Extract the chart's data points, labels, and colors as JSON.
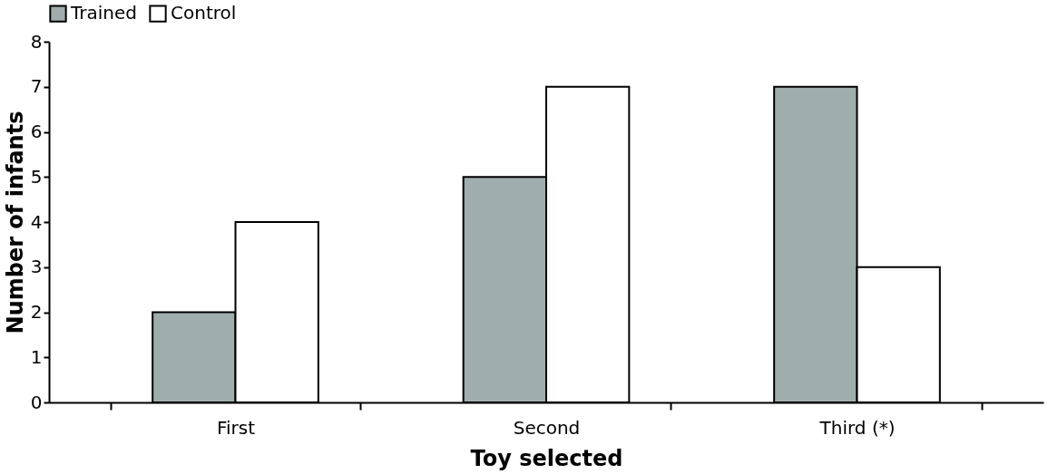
{
  "chart_data": {
    "type": "bar",
    "xlabel": "Toy selected",
    "ylabel": "Number of infants",
    "categories": [
      "First",
      "Second",
      "Third (*)"
    ],
    "series": [
      {
        "name": "Trained",
        "color": "#a0adad",
        "values": [
          2,
          5,
          7
        ]
      },
      {
        "name": "Control",
        "color": "#ffffff",
        "values": [
          4,
          7,
          3
        ]
      }
    ],
    "ylim": [
      0,
      8
    ],
    "yticks": [
      0,
      1,
      2,
      3,
      4,
      5,
      6,
      7,
      8
    ],
    "grid": false,
    "legend": "top"
  }
}
